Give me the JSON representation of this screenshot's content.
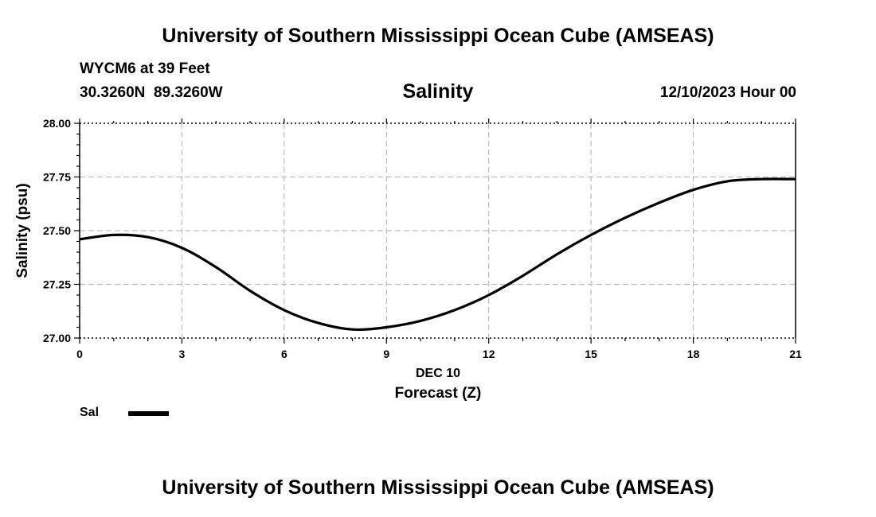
{
  "header": {
    "title": "University of Southern Mississippi Ocean Cube (AMSEAS)",
    "station": "WYCM6 at 39 Feet",
    "coords": "30.3260N  89.3260W",
    "subtitle": "Salinity",
    "datetime": "12/10/2023 Hour 00"
  },
  "footer": {
    "title": "University of Southern Mississippi Ocean Cube (AMSEAS)"
  },
  "chart_data": {
    "type": "line",
    "title": "Salinity",
    "xlabel": "Forecast (Z)",
    "xsublabel": "DEC 10",
    "ylabel": "Salinity (psu)",
    "xlim": [
      0,
      21
    ],
    "ylim": [
      27.0,
      28.0
    ],
    "xticks": [
      0,
      3,
      6,
      9,
      12,
      15,
      18,
      21
    ],
    "xtick_labels": [
      "0",
      "3",
      "6",
      "9",
      "12",
      "15",
      "18",
      "21"
    ],
    "yticks": [
      27.0,
      27.25,
      27.5,
      27.75,
      28.0
    ],
    "ytick_labels": [
      "27.00",
      "27.25",
      "27.50",
      "27.75",
      "28.00"
    ],
    "grid": true,
    "legend_position": "bottom-left",
    "series": [
      {
        "name": "Sal",
        "color": "#000000",
        "x": [
          0,
          1,
          2,
          3,
          4,
          5,
          6,
          7,
          8,
          9,
          10,
          11,
          12,
          13,
          14,
          15,
          16,
          17,
          18,
          19,
          20,
          21
        ],
        "values": [
          27.46,
          27.48,
          27.47,
          27.42,
          27.33,
          27.22,
          27.13,
          27.07,
          27.04,
          27.05,
          27.08,
          27.13,
          27.2,
          27.29,
          27.39,
          27.48,
          27.56,
          27.63,
          27.69,
          27.73,
          27.74,
          27.74
        ]
      }
    ]
  }
}
